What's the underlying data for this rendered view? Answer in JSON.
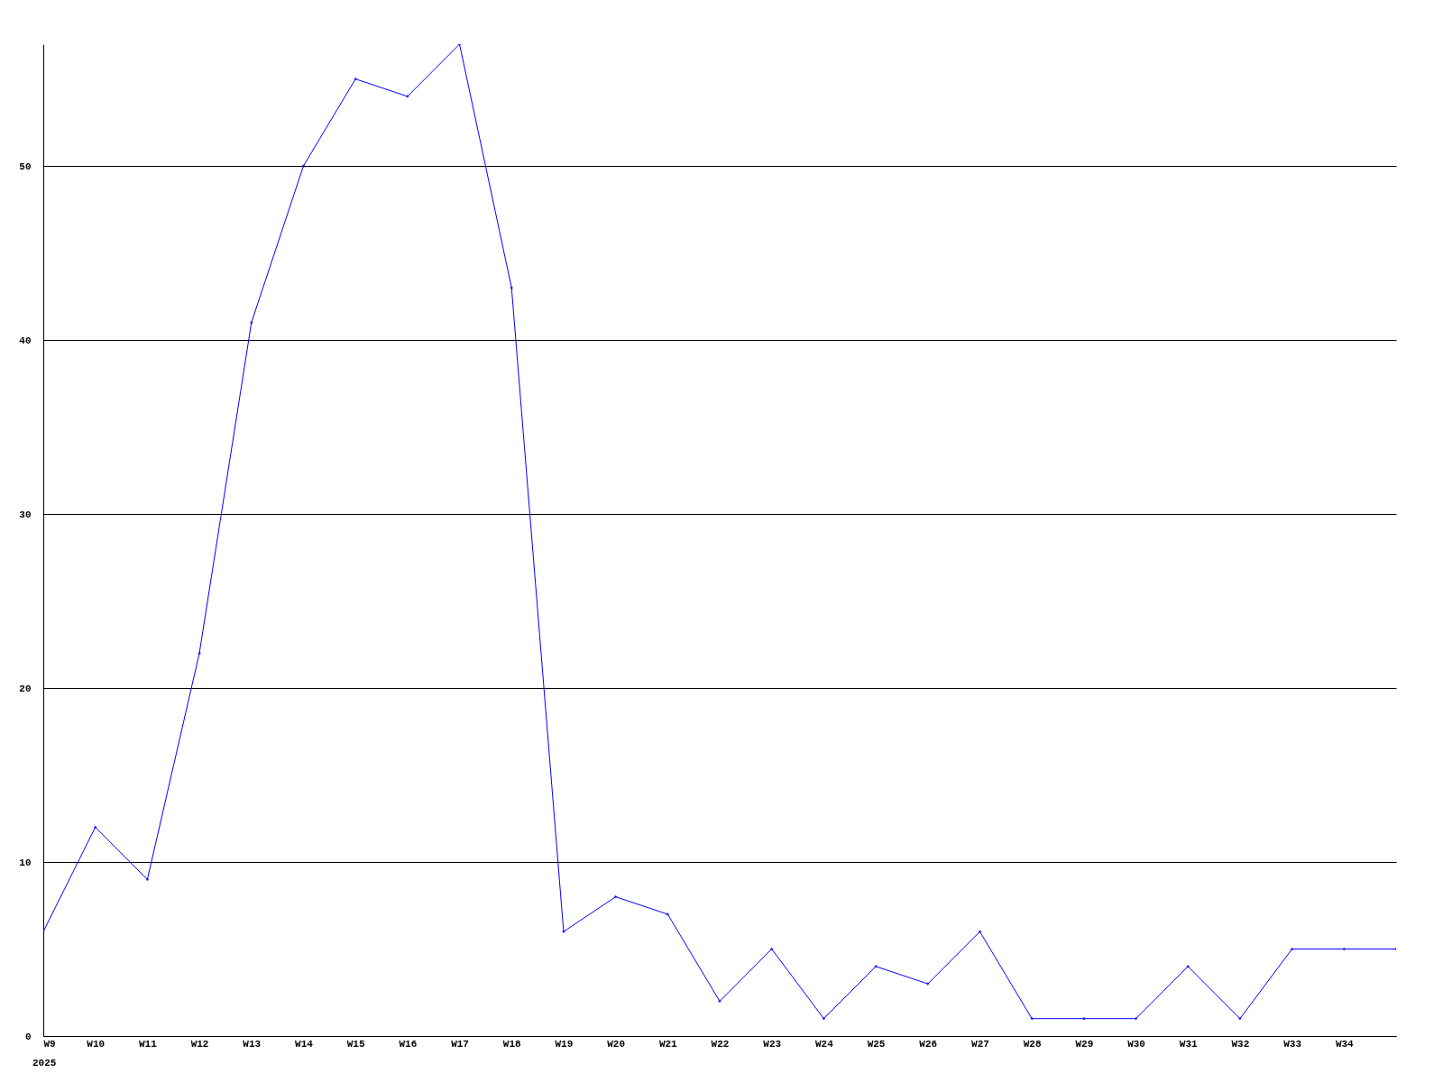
{
  "chart_data": {
    "type": "line",
    "categories": [
      "W9",
      "W10",
      "W11",
      "W12",
      "W13",
      "W14",
      "W15",
      "W16",
      "W17",
      "W18",
      "W19",
      "W20",
      "W21",
      "W22",
      "W23",
      "W24",
      "W25",
      "W26",
      "W27",
      "W28",
      "W29",
      "W30",
      "W31",
      "W32",
      "W33",
      "W34",
      null
    ],
    "series": [
      {
        "color": "#0000ff",
        "values": [
          6,
          12,
          9,
          22,
          41,
          50,
          55,
          54,
          57,
          43,
          6,
          8,
          7,
          2,
          5,
          1,
          4,
          3,
          6,
          1,
          1,
          1,
          4,
          1,
          5,
          5,
          5
        ]
      }
    ],
    "ylim": [
      0,
      57
    ],
    "yticks": [
      0,
      10,
      20,
      30,
      40,
      50
    ],
    "grid": "y",
    "marker": "diamond",
    "line_style": "solid",
    "annotations": [
      "2025"
    ]
  }
}
